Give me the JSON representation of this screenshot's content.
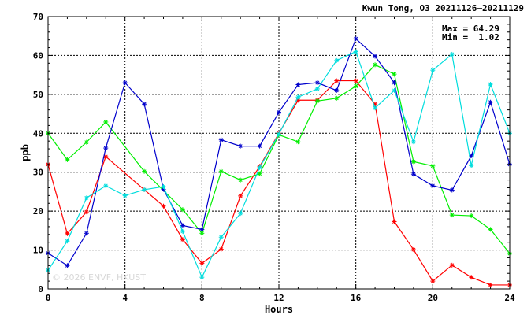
{
  "chart_data": {
    "type": "line",
    "title": "Kwun Tong, O3 20211126–20211129",
    "xlabel": "Hours",
    "ylabel": "ppb",
    "xlim": [
      0,
      24
    ],
    "ylim": [
      0,
      70
    ],
    "x_ticks": [
      "0",
      "4",
      "8",
      "12",
      "16",
      "20",
      "24"
    ],
    "y_ticks": [
      "0",
      "10",
      "20",
      "30",
      "40",
      "50",
      "60",
      "70"
    ],
    "grid": true,
    "stats": {
      "max": "Max = 64.29",
      "min": "Min =  1.02"
    },
    "watermark": "© 2026 ENVF, HKUST",
    "x": [
      0,
      1,
      2,
      3,
      4,
      5,
      6,
      7,
      8,
      9,
      10,
      11,
      12,
      13,
      14,
      15,
      16,
      17,
      18,
      19,
      20,
      21,
      22,
      23,
      24
    ],
    "series": [
      {
        "color": "#ff0000",
        "values": [
          32.0,
          14.2,
          19.8,
          34.0,
          null,
          25.5,
          21.3,
          12.7,
          6.6,
          10.2,
          23.9,
          31.5,
          40.0,
          48.5,
          48.5,
          53.5,
          53.5,
          47.5,
          17.3,
          10.1,
          2.0,
          6.1,
          3.0,
          1.02,
          1.02
        ]
      },
      {
        "color": "#00ee00",
        "values": [
          40.0,
          33.2,
          37.7,
          42.9,
          null,
          30.2,
          null,
          20.4,
          14.3,
          30.2,
          28.0,
          29.6,
          39.6,
          37.8,
          48.3,
          49.0,
          52.1,
          57.6,
          55.2,
          32.7,
          31.6,
          19.0,
          18.8,
          15.3,
          9.1
        ]
      },
      {
        "color": "#0000cc",
        "values": [
          9.2,
          6.0,
          14.3,
          36.2,
          53.0,
          47.5,
          25.6,
          16.3,
          15.3,
          38.3,
          36.7,
          36.7,
          45.4,
          52.5,
          53.0,
          51.0,
          64.29,
          59.8,
          53.0,
          29.5,
          26.5,
          25.4,
          34.2,
          48.0,
          32.0
        ]
      },
      {
        "color": "#00dddd",
        "values": [
          4.8,
          12.3,
          23.4,
          26.5,
          24.0,
          25.5,
          26.3,
          14.8,
          3.0,
          13.3,
          19.4,
          31.2,
          39.8,
          49.3,
          51.4,
          58.7,
          61.0,
          46.5,
          51.0,
          37.8,
          56.2,
          60.3,
          31.7,
          52.6,
          40.0
        ]
      }
    ]
  }
}
